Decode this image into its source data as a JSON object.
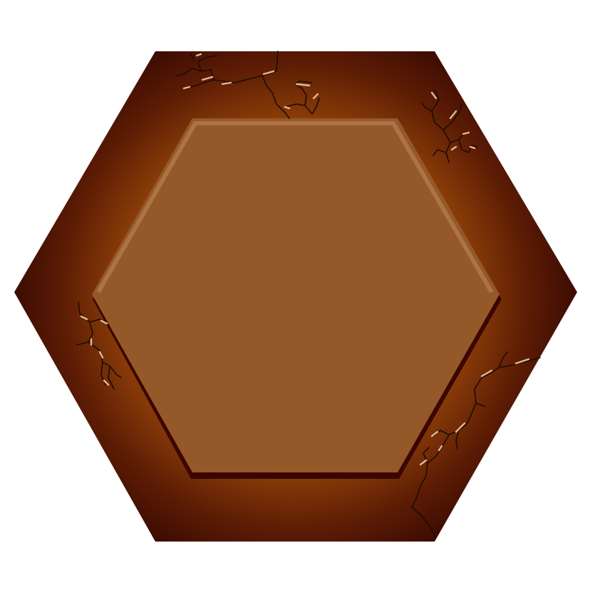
{
  "game": {
    "asset": "hexagon-tile",
    "style": "cracked-clay",
    "colors": {
      "background": "#ffffff",
      "outer_rim_dark": "#3a0a02",
      "outer_rim_mid": "#5c1c04",
      "outer_rim_glow": "#8a3d08",
      "inner_face": "#955828",
      "inner_highlight": "#c08a5e",
      "inner_shadow": "#3c0600",
      "crack_line": "#1e0c05",
      "crack_highlight": "#e2b894"
    },
    "crack_groups": [
      "top",
      "top-right",
      "left",
      "bottom-right"
    ]
  }
}
